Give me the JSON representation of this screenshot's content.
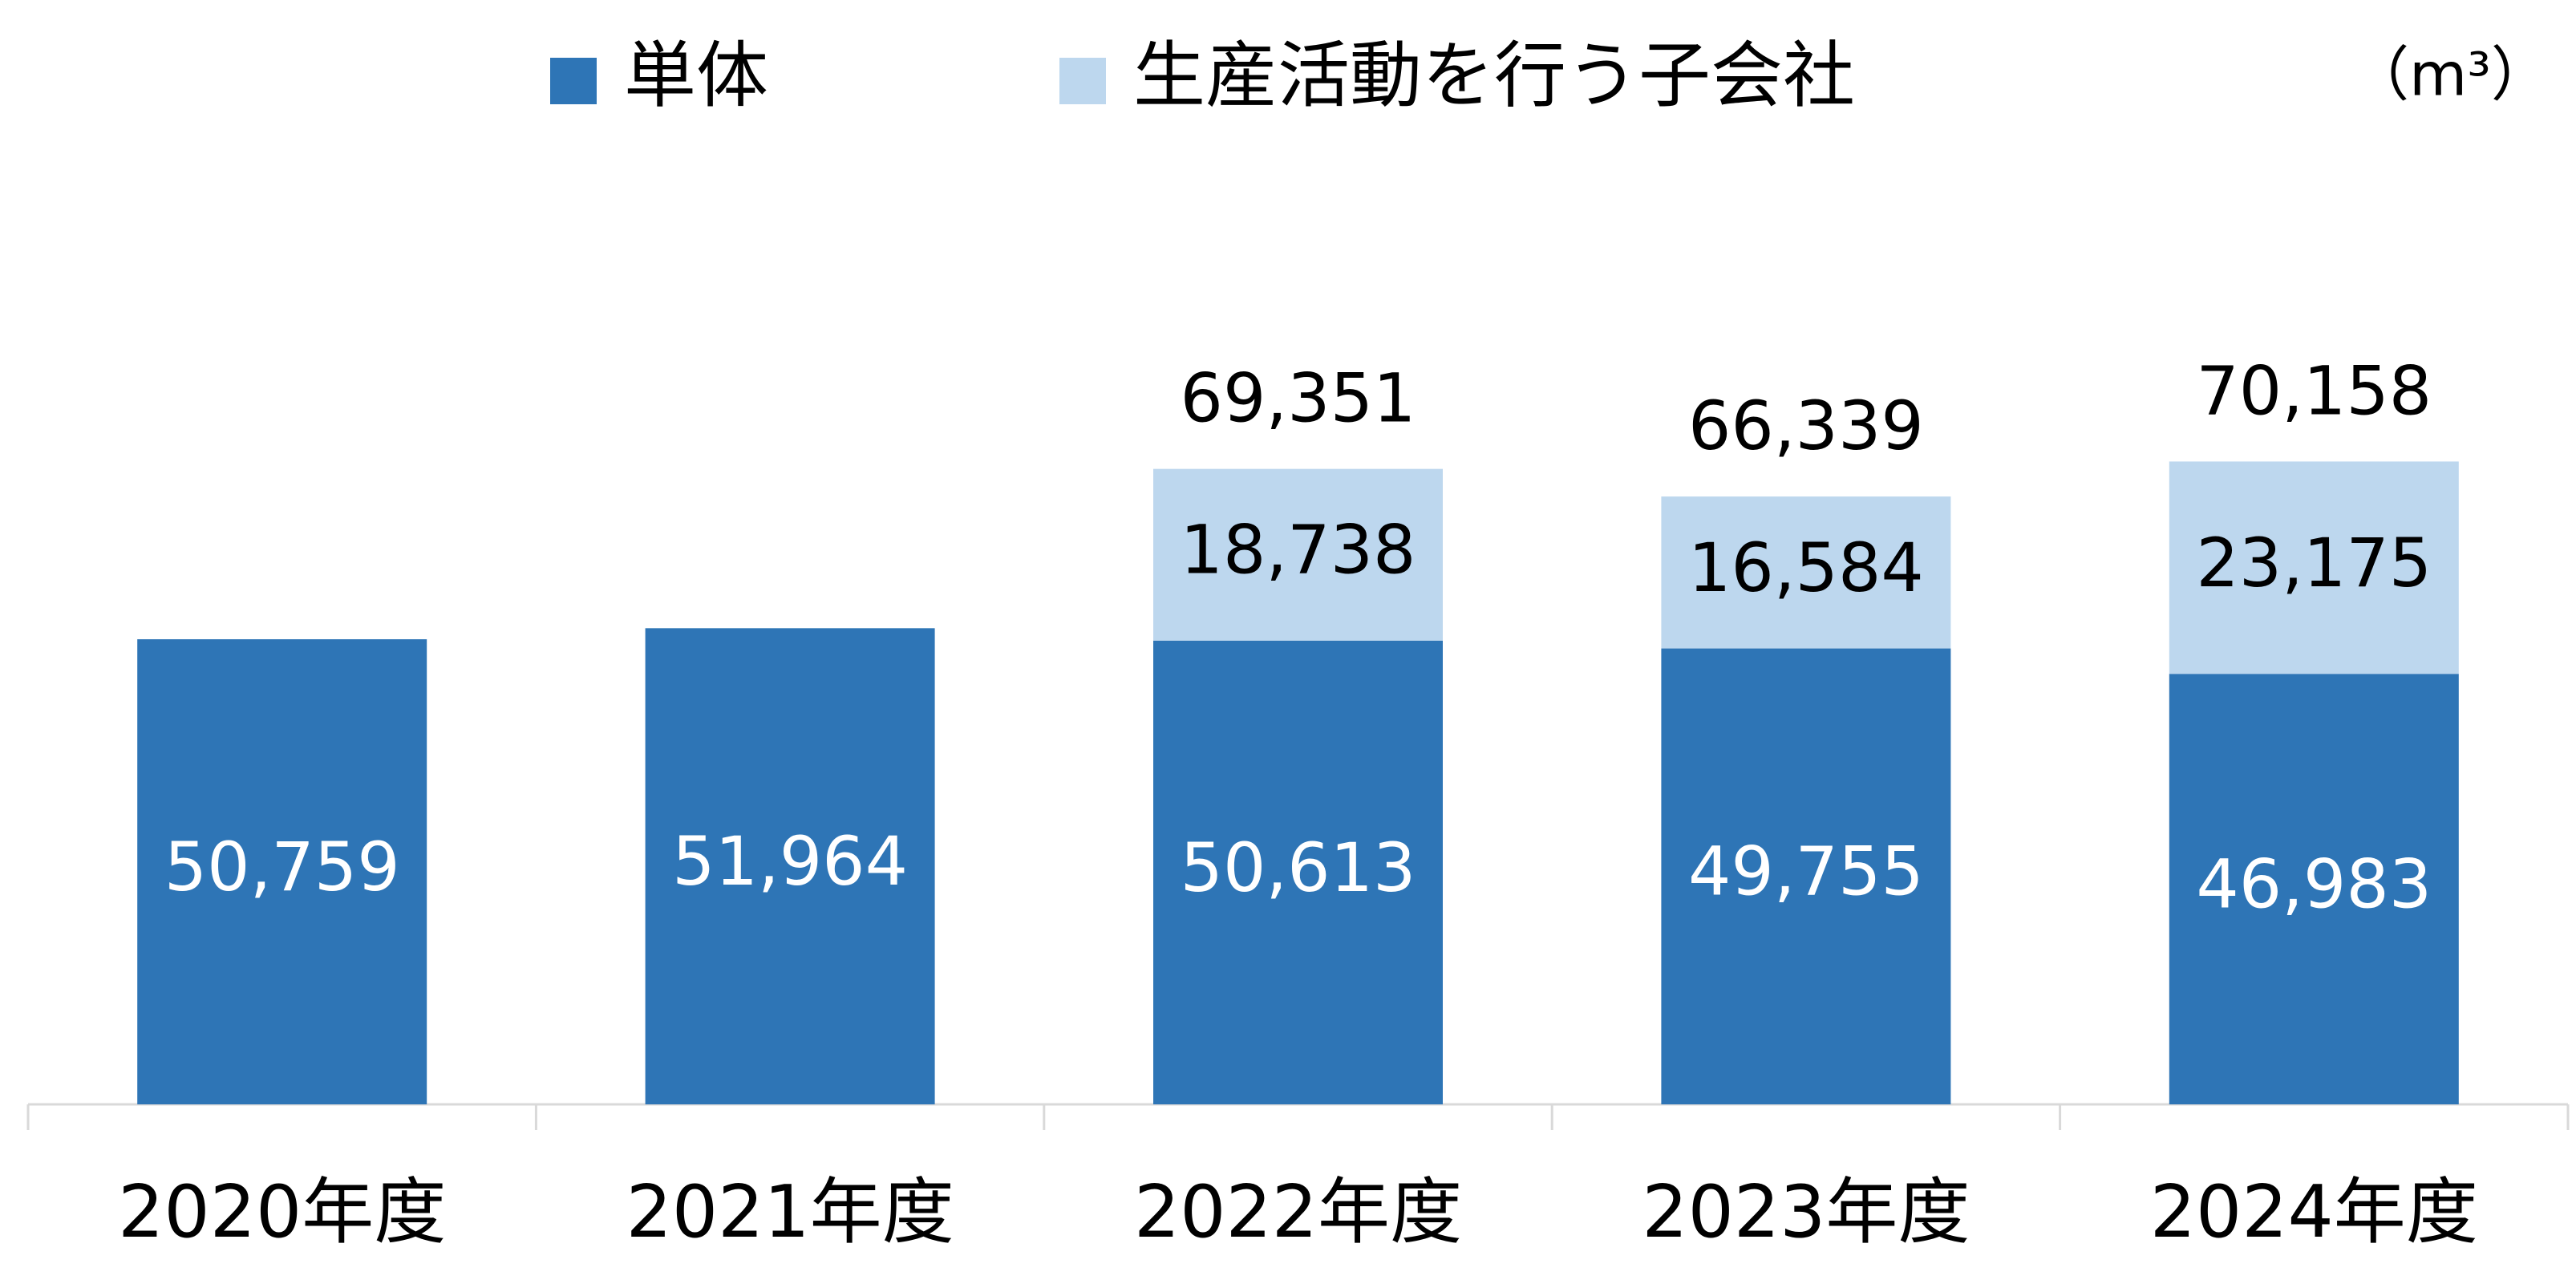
{
  "chart_data": {
    "type": "stacked_bar",
    "unit": "（m³）",
    "categories": [
      "2020年度",
      "2021年度",
      "2022年度",
      "2023年度",
      "2024年度"
    ],
    "series": [
      {
        "name": "単体",
        "color": "#2e75b6",
        "label_color": "#ffffff",
        "values": [
          50759,
          51964,
          50613,
          49755,
          46983
        ],
        "value_labels": [
          "50,759",
          "51,964",
          "50,613",
          "49,755",
          "46,983"
        ]
      },
      {
        "name": "生産活動を行う子会社",
        "color": "#bdd7ee",
        "label_color": "#000000",
        "values": [
          null,
          null,
          18738,
          16584,
          23175
        ],
        "value_labels": [
          null,
          null,
          "18,738",
          "16,584",
          "23,175"
        ]
      }
    ],
    "totals": [
      null,
      null,
      69351,
      66339,
      70158
    ],
    "total_labels": [
      null,
      null,
      "69,351",
      "66,339",
      "70,158"
    ],
    "ylim": [
      0,
      120000
    ]
  }
}
